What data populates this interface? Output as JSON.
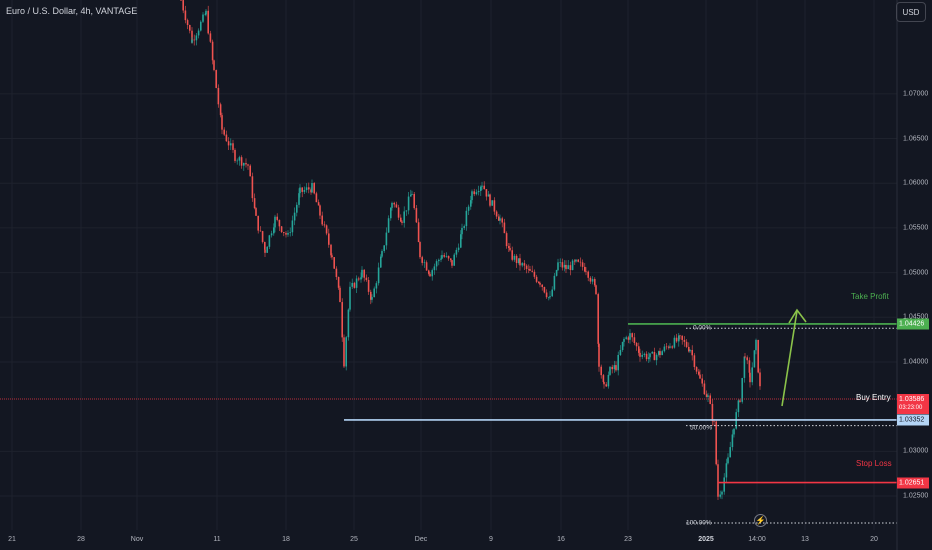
{
  "header": {
    "title": "Euro / U.S. Dollar, 4h, VANTAGE",
    "currency": "USD"
  },
  "colors": {
    "up": "#26a69a",
    "down": "#ef5350",
    "bg": "#131722",
    "grid": "#1e222d",
    "tp": "#4caf50",
    "entry": "#b3d4f5",
    "sl": "#f23645",
    "price": "#f23645",
    "arrow": "#8bc34a"
  },
  "icons": {
    "event": "lightning-bolt-icon"
  },
  "chart_data": {
    "type": "candlestick",
    "y_ticks": [
      "1.07000",
      "1.06500",
      "1.06000",
      "1.05500",
      "1.05000",
      "1.04500",
      "1.04000",
      "1.03000",
      "1.02500"
    ],
    "y_tick_values": [
      1.07,
      1.065,
      1.06,
      1.055,
      1.05,
      1.045,
      1.04,
      1.03,
      1.025
    ],
    "ylim": [
      1.0212,
      1.0805
    ],
    "x_ticks": [
      "21",
      "28",
      "Nov",
      "11",
      "18",
      "25",
      "Dec",
      "9",
      "16",
      "23",
      "2025",
      "14:00",
      "13",
      "20"
    ],
    "x_tick_bold": "2025",
    "current_price": {
      "value": "1.03586",
      "countdown": "03:23:00"
    },
    "levels": {
      "take_profit": {
        "label": "Take Profit",
        "value": "1.04426"
      },
      "buy_entry": {
        "label": "Buy Entry",
        "value": "1.03352"
      },
      "stop_loss": {
        "label": "Stop Loss",
        "value": "1.02651"
      }
    },
    "fib_levels": [
      {
        "label": "0.00%",
        "value": 1.04378
      },
      {
        "label": "50.00%",
        "value": 1.03288
      },
      {
        "label": "100.00%",
        "value": 1.02198
      }
    ],
    "path": [
      [
        181,
        1.0805
      ],
      [
        192,
        1.076
      ],
      [
        206,
        1.079
      ],
      [
        214,
        1.0725
      ],
      [
        222,
        1.066
      ],
      [
        235,
        1.063
      ],
      [
        248,
        1.062
      ],
      [
        256,
        1.056
      ],
      [
        265,
        1.0525
      ],
      [
        275,
        1.056
      ],
      [
        288,
        1.054
      ],
      [
        300,
        1.059
      ],
      [
        312,
        1.0595
      ],
      [
        320,
        1.0565
      ],
      [
        332,
        1.052
      ],
      [
        340,
        1.047
      ],
      [
        344,
        1.04
      ],
      [
        350,
        1.048
      ],
      [
        362,
        1.05
      ],
      [
        372,
        1.047
      ],
      [
        382,
        1.052
      ],
      [
        392,
        1.058
      ],
      [
        402,
        1.056
      ],
      [
        412,
        1.059
      ],
      [
        420,
        1.052
      ],
      [
        430,
        1.05
      ],
      [
        442,
        1.052
      ],
      [
        452,
        1.051
      ],
      [
        462,
        1.0545
      ],
      [
        472,
        1.059
      ],
      [
        482,
        1.06
      ],
      [
        490,
        1.058
      ],
      [
        500,
        1.056
      ],
      [
        510,
        1.052
      ],
      [
        520,
        1.051
      ],
      [
        530,
        1.05
      ],
      [
        540,
        1.049
      ],
      [
        550,
        1.047
      ],
      [
        558,
        1.051
      ],
      [
        566,
        1.0505
      ],
      [
        576,
        1.051
      ],
      [
        586,
        1.0505
      ],
      [
        596,
        1.048
      ],
      [
        599,
        1.04
      ],
      [
        604,
        1.037
      ],
      [
        610,
        1.039
      ],
      [
        616,
        1.0395
      ],
      [
        624,
        1.0425
      ],
      [
        630,
        1.043
      ],
      [
        640,
        1.041
      ],
      [
        650,
        1.0405
      ],
      [
        660,
        1.041
      ],
      [
        670,
        1.042
      ],
      [
        680,
        1.0425
      ],
      [
        690,
        1.0415
      ],
      [
        700,
        1.038
      ],
      [
        708,
        1.036
      ],
      [
        714,
        1.033
      ],
      [
        718,
        1.025
      ],
      [
        722,
        1.026
      ],
      [
        728,
        1.029
      ],
      [
        734,
        1.033
      ],
      [
        740,
        1.036
      ],
      [
        745,
        1.041
      ],
      [
        750,
        1.038
      ],
      [
        756,
        1.042
      ],
      [
        760,
        1.037
      ],
      [
        762,
        1.0358
      ]
    ]
  }
}
